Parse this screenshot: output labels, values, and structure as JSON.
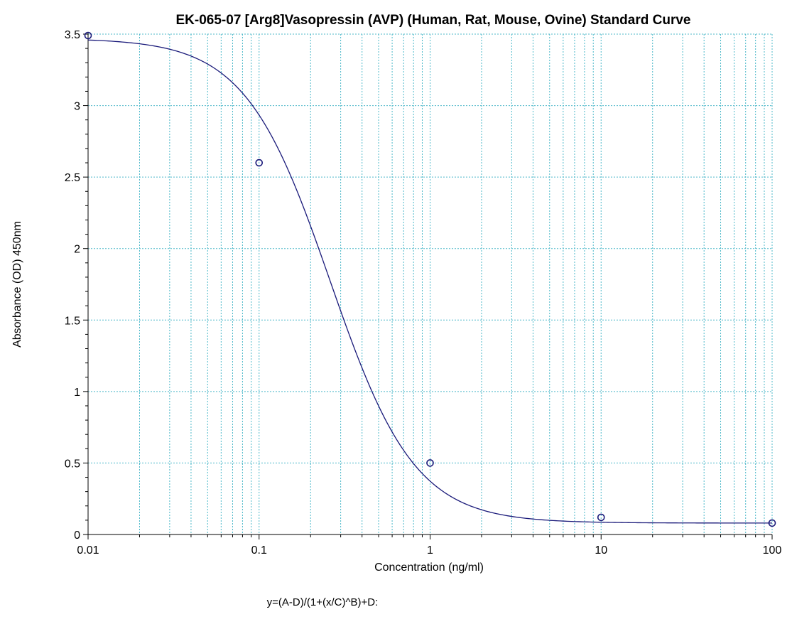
{
  "chart_data": {
    "type": "scatter",
    "title": "EK-065-07 [Arg8]Vasopressin (AVP) (Human, Rat, Mouse, Ovine) Standard Curve",
    "xlabel": "Concentration (ng/ml)",
    "ylabel": "Absorbance (OD) 450nm",
    "equation": "y=(A-D)/(1+(x/C)^B)+D:",
    "x_scale": "log",
    "xlim": [
      0.01,
      100
    ],
    "ylim": [
      0,
      3.5
    ],
    "x_ticks": [
      0.01,
      0.1,
      1,
      10,
      100
    ],
    "x_tick_labels": [
      "0.01",
      "0.1",
      "1",
      "10",
      "100"
    ],
    "y_ticks": [
      0,
      0.5,
      1,
      1.5,
      2,
      2.5,
      3,
      3.5
    ],
    "y_tick_labels": [
      "0",
      "0.5",
      "1",
      "1.5",
      "2",
      "2.5",
      "3",
      "3.5"
    ],
    "grid": true,
    "points": [
      {
        "x": 0.01,
        "y": 3.49
      },
      {
        "x": 0.1,
        "y": 2.6
      },
      {
        "x": 1,
        "y": 0.5
      },
      {
        "x": 10,
        "y": 0.12
      },
      {
        "x": 100,
        "y": 0.08
      }
    ],
    "fit_curve": {
      "type": "4PL",
      "A": 3.47,
      "B": 1.75,
      "C": 0.26,
      "D": 0.08
    },
    "colors": {
      "marker": "#1a1a7a",
      "curve": "#1a1a7a",
      "grid": "#4cb8c9",
      "axis": "#000000"
    }
  }
}
